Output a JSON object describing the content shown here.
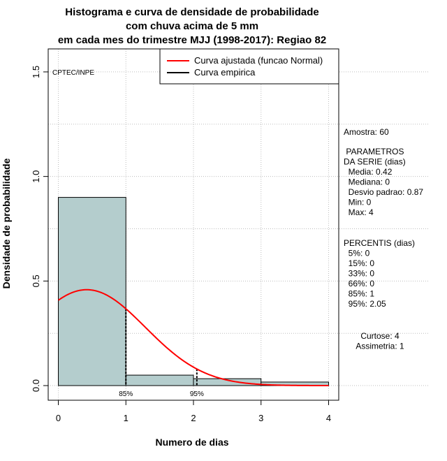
{
  "chart_data": {
    "type": "bar",
    "title_lines": [
      "Histograma e curva de densidade de probabilidade",
      "com chuva acima de 5 mm",
      "em cada mes do trimestre MJJ (1998-2017): Regiao 82"
    ],
    "xlabel": "Numero de dias",
    "ylabel": "Densidade de probabilidade",
    "xlim": [
      -0.15,
      4.15
    ],
    "ylim": [
      -0.07,
      1.61
    ],
    "x_ticks": [
      0,
      1,
      2,
      3,
      4
    ],
    "x_tick_labels": [
      "0",
      "1",
      "2",
      "3",
      "4"
    ],
    "y_ticks": [
      0.0,
      0.5,
      1.0,
      1.5
    ],
    "y_tick_labels": [
      "0.0",
      "0.5",
      "1.0",
      "1.5"
    ],
    "grid": true,
    "bins": [
      {
        "x0": 0,
        "x1": 1,
        "density": 0.9
      },
      {
        "x0": 1,
        "x1": 2,
        "density": 0.05
      },
      {
        "x0": 2,
        "x1": 3,
        "density": 0.033
      },
      {
        "x0": 3,
        "x1": 4,
        "density": 0.017
      }
    ],
    "bar_fill": "#b4cdcd",
    "curve_color": "#ff0000",
    "normal_fit": {
      "mean": 0.42,
      "sd": 0.87
    },
    "percentile_markers": [
      {
        "label": "85%",
        "x": 1
      },
      {
        "label": "95%",
        "x": 2.05
      }
    ],
    "legend_position": "top-right",
    "legend": [
      {
        "label": "Curva ajustada (funcao Normal)",
        "color": "#ff0000"
      },
      {
        "label": "Curva empirica",
        "color": "#000000"
      }
    ],
    "watermark": "CPTEC/INPE",
    "side_panel": {
      "lines_a": [
        "Amostra: 60"
      ],
      "lines_b": [
        " PARAMETROS",
        "DA SERIE (dias)",
        "  Media: 0.42",
        "  Mediana: 0",
        "  Desvio padrao: 0.87",
        "  Min: 0",
        "  Max: 4"
      ],
      "lines_c": [
        "PERCENTIS (dias)",
        "  5%: 0",
        "  15%: 0",
        "  33%: 0",
        "  66%: 0",
        "  85%: 1",
        "  95%: 2.05"
      ],
      "lines_d": [
        "Curtose: 4",
        "Assimetria: 1"
      ]
    }
  }
}
